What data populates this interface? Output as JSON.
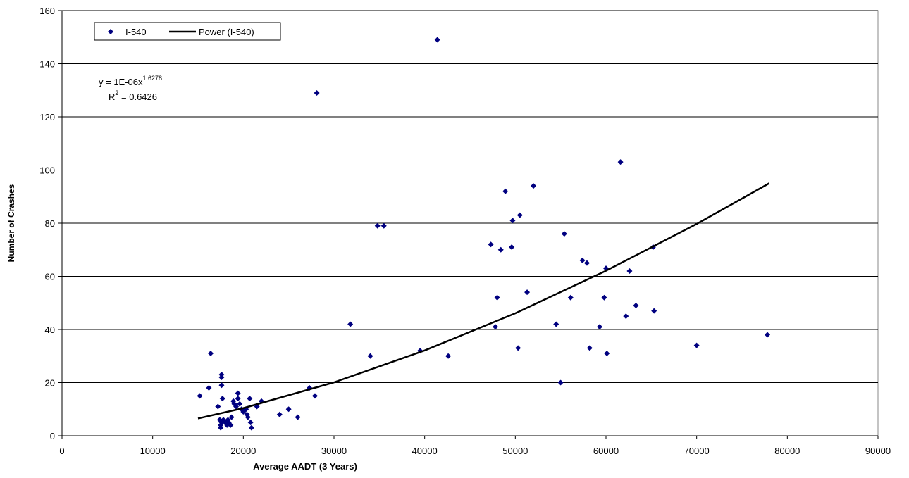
{
  "chart_data": {
    "type": "scatter",
    "x_label": "Average AADT (3 Years)",
    "y_label": "Number of Crashes",
    "xlim": [
      0,
      90000
    ],
    "xticks": [
      0,
      10000,
      20000,
      30000,
      40000,
      50000,
      60000,
      70000,
      80000,
      90000
    ],
    "ylim": [
      0,
      160
    ],
    "yticks": [
      0,
      20,
      40,
      60,
      80,
      100,
      120,
      140,
      160
    ],
    "grid": true,
    "legend": "top-left",
    "equation": {
      "text": "y = 1E-06x",
      "superscript": "1.6278"
    },
    "r_squared": {
      "text": "R",
      "superscript": "2",
      "suffix": " = 0.6426"
    },
    "series": [
      {
        "name": "I-540",
        "color": "#000080",
        "x": [
          15200,
          16200,
          16400,
          17200,
          17400,
          17500,
          17500,
          17600,
          17600,
          17600,
          17600,
          17700,
          17800,
          18000,
          18200,
          18300,
          18400,
          18600,
          18700,
          18900,
          19000,
          19200,
          19400,
          19400,
          19600,
          19800,
          20000,
          20300,
          20400,
          20500,
          20700,
          20800,
          20900,
          21500,
          22000,
          24000,
          25000,
          26000,
          27300,
          27900,
          28100,
          31800,
          34000,
          34800,
          35500,
          39500,
          41400,
          42600,
          47300,
          47800,
          48000,
          48400,
          48900,
          49600,
          49700,
          50300,
          50500,
          51300,
          52000,
          54500,
          55000,
          55400,
          56100,
          57400,
          57900,
          58200,
          59300,
          59800,
          60000,
          60100,
          61600,
          62200,
          62600,
          63300,
          65200,
          65300,
          70000,
          77800
        ],
        "values": [
          15,
          18,
          31,
          11,
          6,
          4,
          3,
          5,
          23,
          22,
          19,
          14,
          6,
          5,
          4,
          6,
          5,
          4,
          7,
          13,
          12,
          11,
          14,
          16,
          12,
          10,
          9,
          10,
          8,
          7,
          14,
          5,
          3,
          11,
          13,
          8,
          10,
          7,
          18,
          15,
          129,
          42,
          30,
          79,
          79,
          32,
          149,
          30,
          72,
          41,
          52,
          70,
          92,
          71,
          81,
          33,
          83,
          54,
          94,
          42,
          20,
          76,
          52,
          66,
          65,
          33,
          41,
          52,
          63,
          31,
          103,
          45,
          62,
          49,
          71,
          47,
          34,
          38
        ]
      },
      {
        "name": "Power (I-540)",
        "color": "#000000",
        "x": [
          15000,
          20000,
          30000,
          40000,
          50000,
          60000,
          70000,
          78000
        ],
        "values": [
          6.5,
          10.4,
          20.1,
          32.1,
          46.1,
          62.1,
          79.7,
          95
        ]
      }
    ]
  }
}
